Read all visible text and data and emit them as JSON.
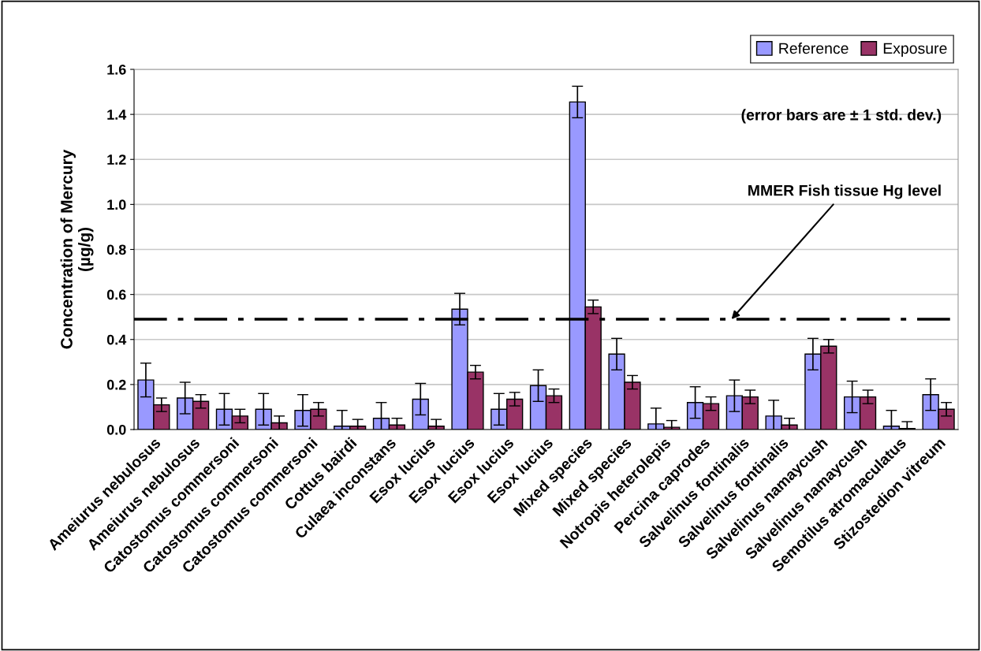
{
  "chart_data": {
    "type": "bar",
    "ylabel": "Concentration of Mercury\n(µg/g)",
    "categories": [
      "Ameiurus nebulosus",
      "Ameiurus nebulosus",
      "Catostomus commersoni",
      "Catostomus commersoni",
      "Catostomus commersoni",
      "Cottus bairdi",
      "Culaea inconstans",
      "Esox lucius",
      "Esox lucius",
      "Esox lucius",
      "Esox lucius",
      "Mixed species",
      "Mixed species",
      "Notropis heterolepis",
      "Percina caprodes",
      "Salvelinus fontinalis",
      "Salvelinus fontinalis",
      "Salvelinus namaycush",
      "Salvelinus namaycush",
      "Semotilus atromaculatus",
      "Stizostedion vitreum"
    ],
    "series": [
      {
        "name": "Reference",
        "color": "#9999ff",
        "values": [
          0.22,
          0.14,
          0.09,
          0.09,
          0.085,
          0.015,
          0.05,
          0.135,
          0.535,
          0.09,
          0.195,
          1.455,
          0.335,
          0.025,
          0.12,
          0.15,
          0.06,
          0.335,
          0.145,
          0.015,
          0.155
        ],
        "errors": [
          0.075,
          0.07,
          0.07,
          0.07,
          0.07,
          0.07,
          0.07,
          0.07,
          0.07,
          0.07,
          0.07,
          0.07,
          0.07,
          0.07,
          0.07,
          0.07,
          0.07,
          0.07,
          0.07,
          0.07,
          0.07
        ]
      },
      {
        "name": "Exposure",
        "color": "#993366",
        "values": [
          0.11,
          0.125,
          0.06,
          0.03,
          0.09,
          0.015,
          0.02,
          0.015,
          0.255,
          0.135,
          0.15,
          0.545,
          0.21,
          0.01,
          0.115,
          0.145,
          0.02,
          0.37,
          0.145,
          0.005,
          0.09
        ],
        "errors": [
          0.03,
          0.03,
          0.03,
          0.03,
          0.03,
          0.03,
          0.03,
          0.03,
          0.03,
          0.03,
          0.03,
          0.03,
          0.03,
          0.03,
          0.03,
          0.03,
          0.03,
          0.03,
          0.03,
          0.03,
          0.03
        ]
      }
    ],
    "ylim": [
      0,
      1.6
    ],
    "yticks": [
      {
        "value": 0,
        "label": "0.0"
      },
      0.2,
      0.4,
      0.6,
      0.8,
      {
        "value": 1,
        "label": "1.0"
      },
      1.2,
      1.4,
      1.6
    ],
    "ref_lines": [
      {
        "axis": "y",
        "value": 0.49,
        "label": "MMER Fish tissue Hg level",
        "color": "#000000",
        "line_style": "dashdot"
      }
    ],
    "annotations": [
      "(error bars are ± 1 std. dev.)"
    ],
    "grid": "y",
    "legend": "top right"
  }
}
